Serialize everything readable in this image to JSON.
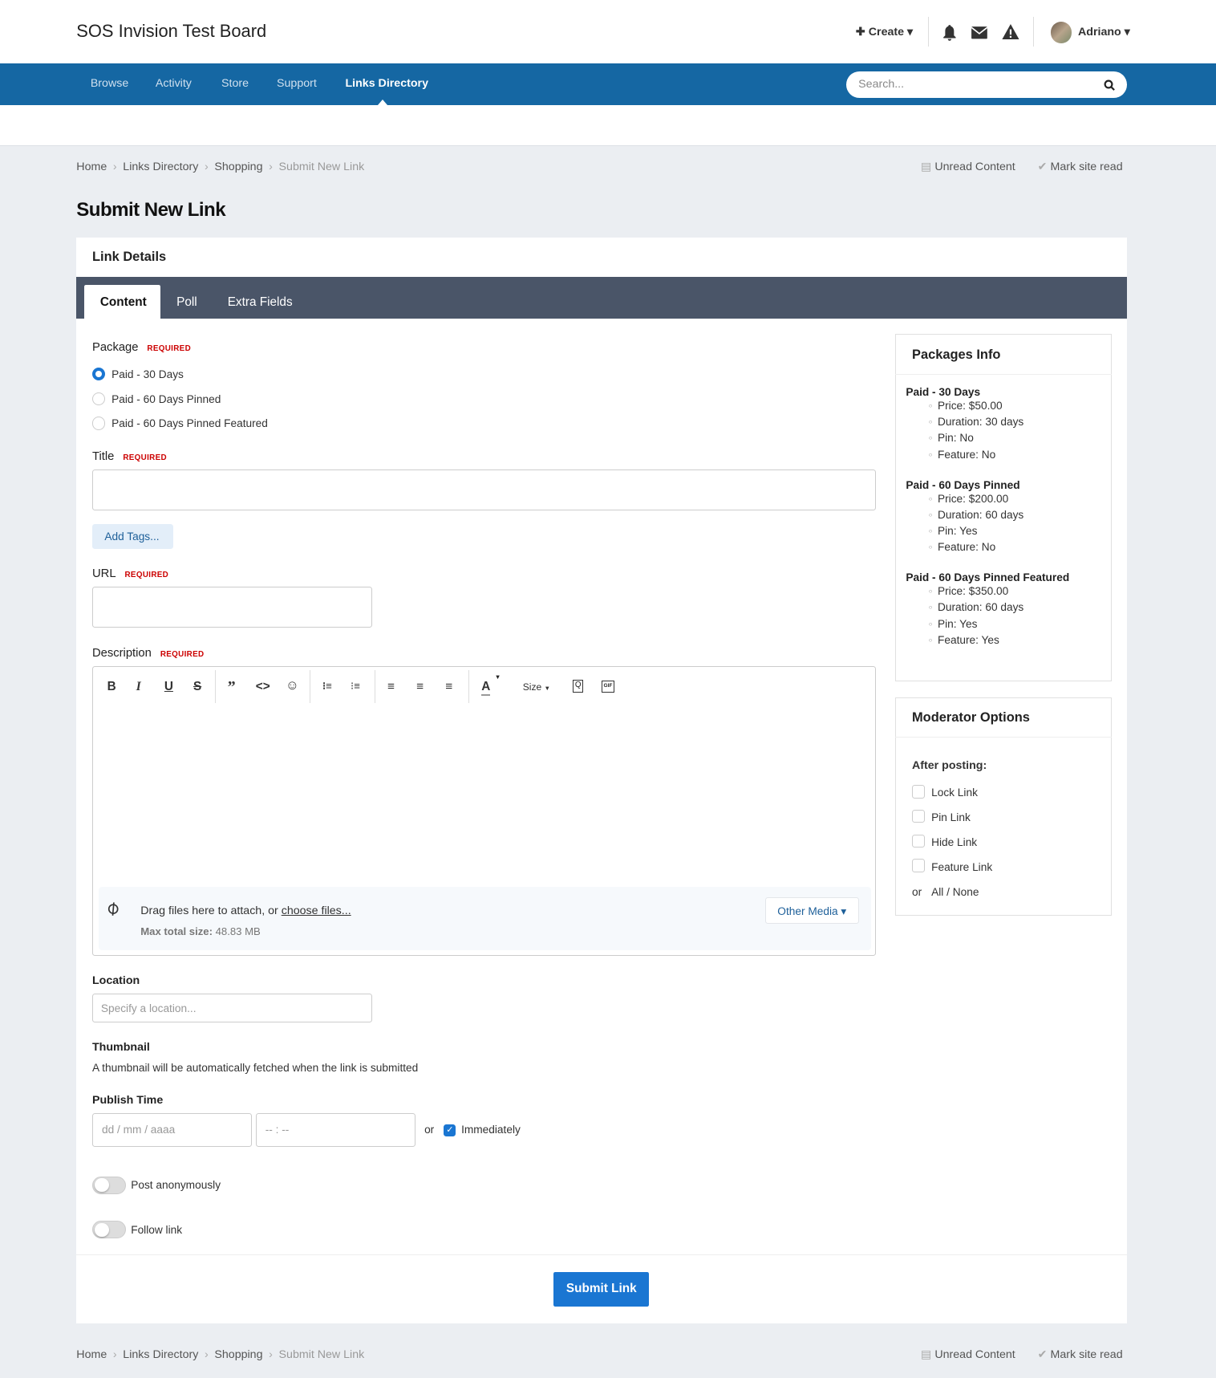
{
  "site": {
    "title": "SOS Invision Test Board"
  },
  "user_bar": {
    "create": "Create",
    "username": "Adriano",
    "icons": [
      "bell-icon",
      "envelope-icon",
      "warning-icon"
    ]
  },
  "nav": {
    "items": [
      "Browse",
      "Activity",
      "Store",
      "Support",
      "Links Directory"
    ],
    "active": "Links Directory",
    "search_placeholder": "Search..."
  },
  "breadcrumb": [
    "Home",
    "Links Directory",
    "Shopping",
    "Submit New Link"
  ],
  "actions": {
    "unread": "Unread Content",
    "mark_read": "Mark site read"
  },
  "page_title": "Submit New Link",
  "card_title": "Link Details",
  "tabs": [
    "Content",
    "Poll",
    "Extra Fields"
  ],
  "form": {
    "required": "REQUIRED",
    "package_label": "Package",
    "packages": [
      "Paid - 30 Days",
      "Paid - 60 Days Pinned",
      "Paid - 60 Days Pinned Featured"
    ],
    "package_selected": "Paid - 30 Days",
    "title_label": "Title",
    "title_value": "",
    "add_tags": "Add Tags...",
    "url_label": "URL",
    "url_value": "",
    "description_label": "Description",
    "editor": {
      "size": "Size",
      "drag_text": "Drag files here to attach, or ",
      "choose": "choose files...",
      "max_label": "Max total size:",
      "max_value": "48.83 MB",
      "other_media": "Other Media"
    },
    "location_label": "Location",
    "location_placeholder": "Specify a location...",
    "thumbnail_label": "Thumbnail",
    "thumbnail_text": "A thumbnail will be automatically fetched when the link is submitted",
    "publish_label": "Publish Time",
    "date_placeholder": "dd / mm / aaaa",
    "time_placeholder": "-- : --",
    "or": "or",
    "immediately": "Immediately",
    "immediately_checked": true,
    "anon": "Post anonymously",
    "anon_on": false,
    "follow": "Follow link",
    "follow_on": false,
    "submit": "Submit Link"
  },
  "packages_info": {
    "title": "Packages Info",
    "packages": [
      {
        "name": "Paid - 30 Days",
        "items": [
          "Price: $50.00",
          "Duration: 30 days",
          "Pin: No",
          "Feature: No"
        ]
      },
      {
        "name": "Paid - 60 Days Pinned",
        "items": [
          "Price: $200.00",
          "Duration: 60 days",
          "Pin: Yes",
          "Feature: No"
        ]
      },
      {
        "name": "Paid - 60 Days Pinned Featured",
        "items": [
          "Price: $350.00",
          "Duration: 60 days",
          "Pin: Yes",
          "Feature: Yes"
        ]
      }
    ]
  },
  "moderator": {
    "title": "Moderator Options",
    "after": "After posting:",
    "options": [
      "Lock Link",
      "Pin Link",
      "Hide Link",
      "Feature Link"
    ],
    "or": "or",
    "all_none": "All / None"
  },
  "colors": {
    "nav": "#1567a3",
    "tabs": "#4a5568",
    "accent": "#1a76d2",
    "required": "#cc0000"
  }
}
